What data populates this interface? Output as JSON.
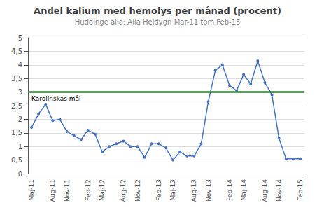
{
  "chart_data": {
    "type": "line",
    "title": "Andel kalium med hemolys per månad (procent)",
    "subtitle": "Huddinge alla: Alla Heldygn Mar-11 tom Feb-15",
    "categories": [
      "Maj-11",
      null,
      null,
      "Aug-11",
      null,
      "Nov-11",
      null,
      null,
      "Feb-12",
      null,
      "Maj-12",
      null,
      null,
      "Aug-12",
      null,
      "Nov-12",
      null,
      null,
      "Feb-13",
      null,
      "Maj-13",
      null,
      null,
      "Aug-13",
      null,
      "Nov-13",
      null,
      null,
      "Feb-14",
      null,
      "Maj-14",
      null,
      null,
      "Aug-14",
      null,
      "Nov-14",
      null,
      null,
      "Feb-15"
    ],
    "values": [
      1.7,
      2.2,
      2.55,
      1.95,
      2.0,
      1.55,
      1.4,
      1.25,
      1.6,
      1.45,
      0.8,
      1.0,
      1.1,
      1.2,
      1.0,
      1.0,
      0.6,
      1.1,
      1.1,
      0.95,
      0.5,
      0.8,
      0.65,
      0.65,
      1.1,
      2.65,
      3.8,
      4.0,
      3.25,
      3.05,
      3.65,
      3.3,
      4.15,
      3.35,
      2.9,
      1.3,
      0.55,
      0.55,
      0.55
    ],
    "color": "#4472C4",
    "marker": "circle",
    "goal": {
      "value": 3.0,
      "label": "Karolinskas mål",
      "color": "#2E7D32"
    },
    "ylim": [
      0,
      5
    ],
    "yticks": [
      0,
      {
        "value": 0.5,
        "label": "0,5"
      },
      1,
      {
        "value": 1.5,
        "label": "1,5"
      },
      2,
      {
        "value": 2.5,
        "label": "2,5"
      },
      3,
      {
        "value": 3.5,
        "label": "3,5"
      },
      4,
      {
        "value": 4.5,
        "label": "4,5"
      },
      5
    ],
    "grid": true
  }
}
